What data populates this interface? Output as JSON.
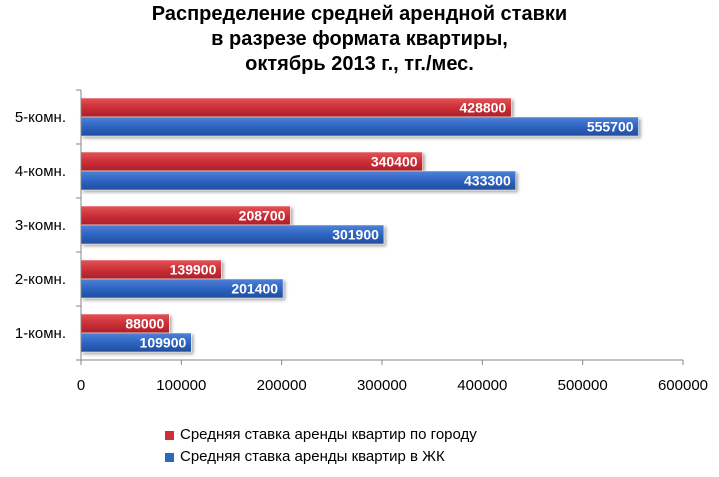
{
  "title_lines": [
    "Распределение средней арендной ставки",
    "в разрезе формата квартиры,",
    "октябрь 2013 г., тг./мес."
  ],
  "chart_data": {
    "type": "bar",
    "orientation": "horizontal",
    "title": "Распределение средней арендной ставки в разрезе формата квартиры, октябрь 2013 г., тг./мес.",
    "categories": [
      "1-комн.",
      "2-комн.",
      "3-комн.",
      "4-комн.",
      "5-комн."
    ],
    "series": [
      {
        "name": "Средняя ставка аренды квартир по городу",
        "color": "#cc2f36",
        "values": [
          88000,
          139900,
          208700,
          340400,
          428800
        ]
      },
      {
        "name": "Средняя ставка аренды квартир в ЖК",
        "color": "#2e64c2",
        "values": [
          109900,
          201400,
          301900,
          433300,
          555700
        ]
      }
    ],
    "xlim": [
      0,
      600000
    ],
    "xticks": [
      0,
      100000,
      200000,
      300000,
      400000,
      500000,
      600000
    ],
    "data_labels": true,
    "grid": false,
    "legend_position": "bottom"
  }
}
